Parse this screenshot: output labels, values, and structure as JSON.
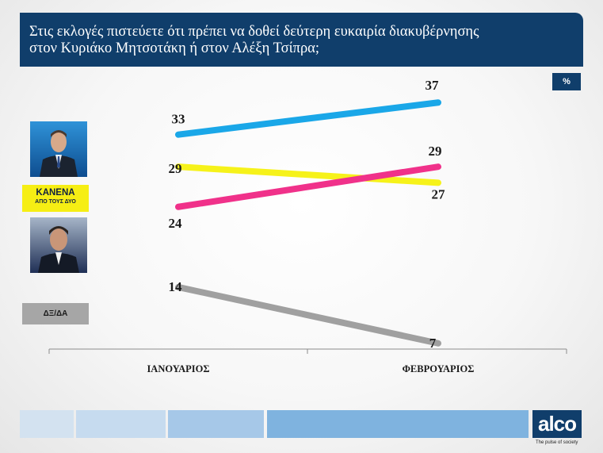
{
  "title": {
    "line1": "Στις εκλογές πιστεύετε ότι πρέπει να δοθεί δεύτερη ευκαιρία διακυβέρνησης",
    "line2": "στον Κυριάκο Μητσοτάκη ή στον Αλέξη Τσίπρα;"
  },
  "unit_badge": "%",
  "legend": {
    "none_line1": "ΚΑΝΕΝΑ",
    "none_line2": "ΑΠΟ ΤΟΥΣ ΔΥΟ",
    "dk_label": "ΔΞ/ΔΑ"
  },
  "branding": {
    "logo": "alco",
    "tagline": "The pulse of society"
  },
  "colors": {
    "title_bar": "#103e6b",
    "mitsotakis": "#1aa7e8",
    "tsipras": "#f0318a",
    "none": "#f6f21a",
    "dk": "#a0a0a0",
    "footer": [
      "#d3e2f0",
      "#c6dbef",
      "#a6c8e8",
      "#7fb3df"
    ]
  },
  "chart_data": {
    "type": "line",
    "categories": [
      "ΙΑΝΟΥΑΡΙΟΣ",
      "ΦΕΒΡΟΥΑΡΙΟΣ"
    ],
    "series": [
      {
        "key": "mitsotakis",
        "values": [
          33,
          37
        ],
        "color": "#1aa7e8"
      },
      {
        "key": "none",
        "values": [
          29,
          27
        ],
        "color": "#f6f21a"
      },
      {
        "key": "tsipras",
        "values": [
          24,
          29
        ],
        "color": "#f0318a"
      },
      {
        "key": "dk",
        "values": [
          14,
          7
        ],
        "color": "#a0a0a0"
      }
    ],
    "ylim": [
      5,
      39
    ],
    "grid": false
  }
}
